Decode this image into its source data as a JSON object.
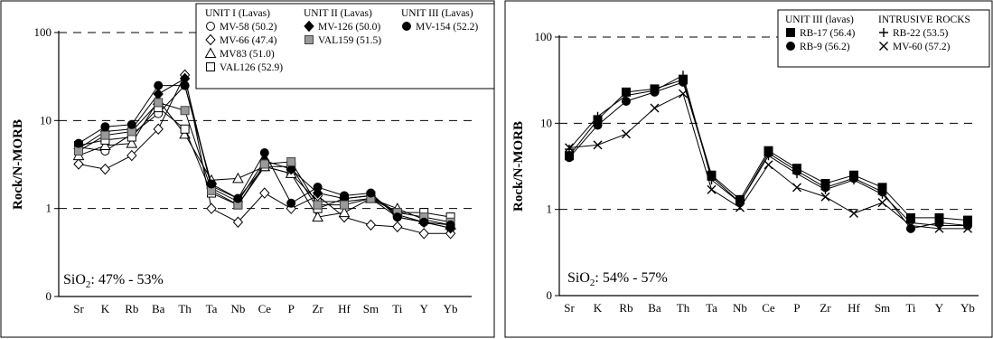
{
  "chart_data": [
    {
      "type": "line",
      "ylabel": "Rock/N-MORB",
      "yscale": "log",
      "ylim": [
        0.1,
        100
      ],
      "yticks": [
        {
          "value": 100,
          "label": "100"
        },
        {
          "value": 10,
          "label": "10"
        },
        {
          "value": 1,
          "label": "1"
        },
        {
          "value": 0.1,
          "label": "0"
        }
      ],
      "categories": [
        "Sr",
        "K",
        "Rb",
        "Ba",
        "Th",
        "Ta",
        "Nb",
        "Ce",
        "P",
        "Zr",
        "Hf",
        "Sm",
        "Ti",
        "Y",
        "Yb"
      ],
      "annotation_prefix": "SiO",
      "annotation_sub": "2",
      "annotation_suffix": ": 47% - 53%",
      "legend_groups": [
        {
          "title": "UNIT I (Lavas)",
          "entries": [
            "MV-58 (50.2)",
            "MV-66 (47.4)",
            "MV83 (51.0)",
            "VAL126 (52.9)"
          ]
        },
        {
          "title": "UNIT II (Lavas)",
          "entries": [
            "MV-126 (50.0)",
            "VAL159 (51.5)"
          ]
        },
        {
          "title": "UNIT III (Lavas)",
          "entries": [
            "MV-154 (52.2)"
          ]
        }
      ],
      "series": [
        {
          "name": "MV-58 (50.2)",
          "marker": "circle-open",
          "values": [
            5.0,
            4.5,
            7.0,
            12.0,
            25.0,
            1.8,
            1.3,
            3.0,
            2.5,
            1.2,
            1.2,
            1.3,
            0.8,
            0.7,
            0.6
          ]
        },
        {
          "name": "MV-66 (47.4)",
          "marker": "diamond-open",
          "values": [
            3.2,
            2.8,
            4.0,
            8.0,
            33.0,
            1.0,
            0.7,
            1.5,
            1.0,
            1.4,
            0.8,
            0.65,
            0.62,
            0.52,
            0.52
          ]
        },
        {
          "name": "MV83 (51.0)",
          "marker": "triangle-open",
          "values": [
            4.0,
            5.2,
            5.5,
            17.0,
            7.0,
            2.1,
            2.2,
            3.0,
            2.5,
            0.8,
            0.9,
            1.3,
            1.0,
            0.75,
            0.65
          ]
        },
        {
          "name": "VAL126 (52.9)",
          "marker": "square-open",
          "values": [
            5.2,
            6.0,
            6.5,
            14.0,
            8.0,
            1.5,
            1.1,
            3.0,
            3.0,
            1.0,
            1.3,
            1.4,
            0.9,
            0.9,
            0.8
          ]
        },
        {
          "name": "MV-126 (50.0)",
          "marker": "diamond-filled",
          "values": [
            4.8,
            7.5,
            8.0,
            20.0,
            30.0,
            1.7,
            1.2,
            3.5,
            2.8,
            1.5,
            1.3,
            1.4,
            0.85,
            0.7,
            0.6
          ]
        },
        {
          "name": "VAL159 (51.5)",
          "marker": "square-gray",
          "values": [
            4.5,
            6.8,
            7.5,
            16.0,
            13.0,
            1.6,
            1.1,
            3.2,
            3.4,
            1.1,
            1.1,
            1.3,
            0.9,
            0.8,
            0.7
          ]
        },
        {
          "name": "MV-154 (52.2)",
          "marker": "circle-filled",
          "values": [
            5.5,
            8.5,
            9.0,
            25.0,
            25.0,
            1.9,
            1.3,
            4.3,
            1.15,
            1.75,
            1.4,
            1.5,
            0.8,
            0.7,
            0.65
          ]
        }
      ]
    },
    {
      "type": "line",
      "ylabel": "Rock/N-MORB",
      "yscale": "log",
      "ylim": [
        0.1,
        100
      ],
      "yticks": [
        {
          "value": 100,
          "label": "100"
        },
        {
          "value": 10,
          "label": "10"
        },
        {
          "value": 1,
          "label": "1"
        },
        {
          "value": 0.1,
          "label": "0"
        }
      ],
      "categories": [
        "Sr",
        "K",
        "Rb",
        "Ba",
        "Th",
        "Ta",
        "Nb",
        "Ce",
        "P",
        "Zr",
        "Hf",
        "Sm",
        "Ti",
        "Y",
        "Yb"
      ],
      "annotation_prefix": "SiO",
      "annotation_sub": "2",
      "annotation_suffix": ": 54% - 57%",
      "legend_groups": [
        {
          "title": "UNIT III (lavas)",
          "entries": [
            "RB-17 (56.4)",
            "RB-9 (56.2)"
          ]
        },
        {
          "title": "INTRUSIVE ROCKS",
          "entries": [
            "RB-22 (53.5)",
            "MV-60 (57.2)"
          ]
        }
      ],
      "series": [
        {
          "name": "RB-17 (56.4)",
          "marker": "square-filled",
          "values": [
            4.2,
            11.0,
            23.0,
            25.0,
            32.0,
            2.5,
            1.3,
            4.8,
            3.0,
            2.0,
            2.5,
            1.8,
            0.8,
            0.8,
            0.75
          ]
        },
        {
          "name": "RB-9 (56.2)",
          "marker": "circle-filled",
          "values": [
            4.0,
            9.5,
            18.0,
            23.0,
            30.0,
            2.4,
            1.2,
            4.5,
            2.8,
            1.8,
            2.3,
            1.6,
            0.6,
            0.7,
            0.65
          ]
        },
        {
          "name": "RB-22 (53.5)",
          "marker": "plus",
          "values": [
            5.0,
            12.0,
            21.0,
            24.0,
            36.0,
            2.2,
            1.2,
            4.2,
            2.6,
            1.7,
            2.2,
            1.5,
            0.7,
            0.65,
            0.65
          ]
        },
        {
          "name": "MV-60 (57.2)",
          "marker": "cross",
          "values": [
            5.2,
            5.6,
            7.5,
            15.0,
            22.0,
            1.7,
            1.05,
            3.3,
            1.8,
            1.4,
            0.9,
            1.2,
            0.65,
            0.6,
            0.6
          ]
        }
      ]
    }
  ]
}
